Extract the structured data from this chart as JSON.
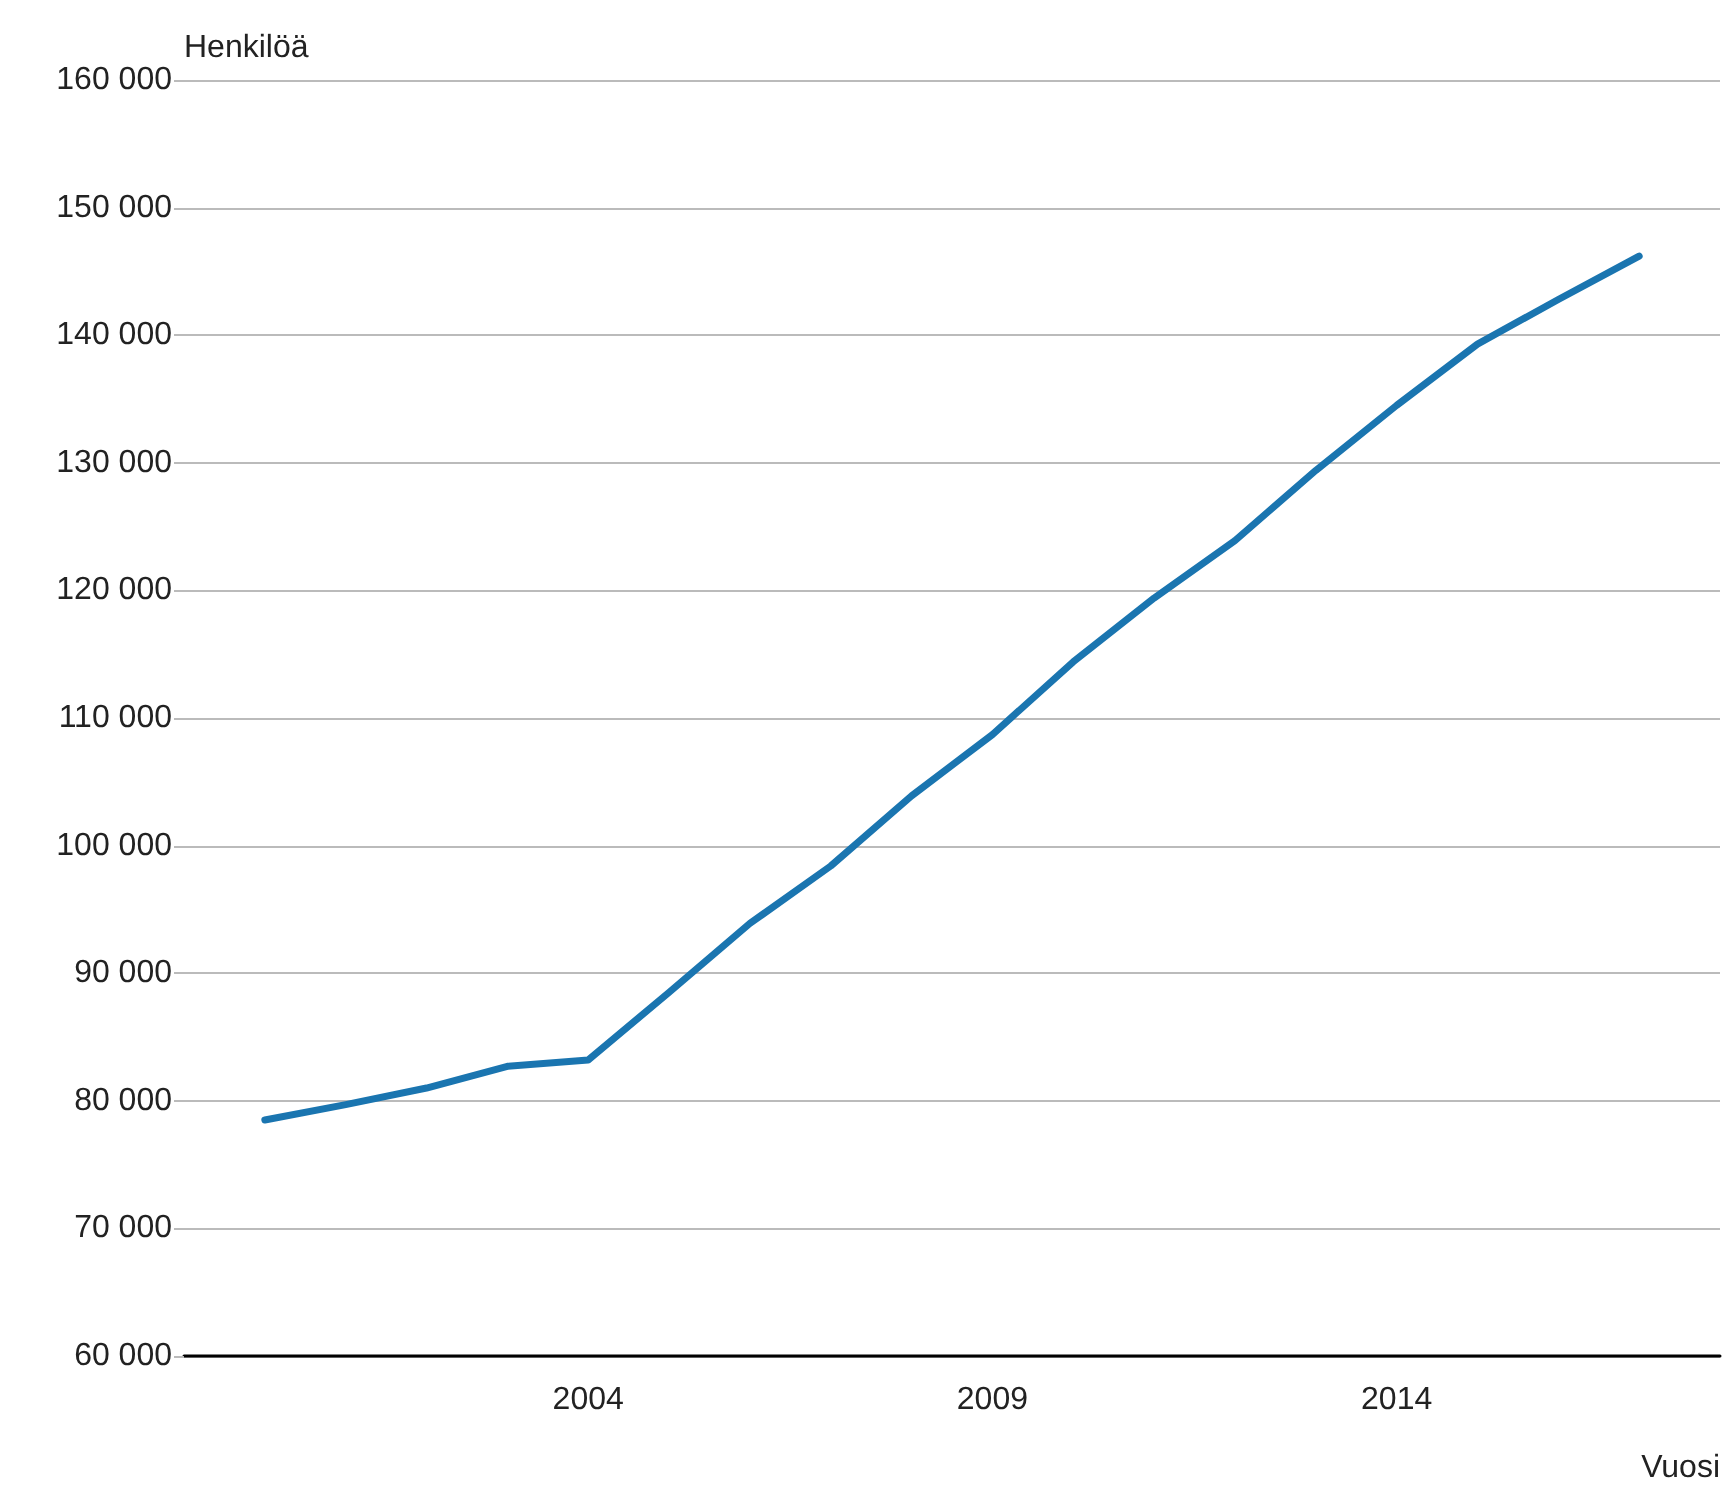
{
  "chart_data": {
    "type": "line",
    "ylabel": "Henkilöä",
    "xlabel": "Vuosi",
    "x": [
      2000,
      2001,
      2002,
      2003,
      2004,
      2005,
      2006,
      2007,
      2008,
      2009,
      2010,
      2011,
      2012,
      2013,
      2014,
      2015,
      2016,
      2017
    ],
    "series": [
      {
        "color": "#1a75b0",
        "values": [
          78500,
          79700,
          81000,
          82700,
          83200,
          88500,
          93900,
          98400,
          103900,
          108700,
          114400,
          119400,
          123900,
          129400,
          134500,
          139300,
          142800,
          146200
        ]
      }
    ],
    "xlim": [
      1999,
      2018
    ],
    "xticks": [
      2004,
      2009,
      2014
    ],
    "ylim": [
      60000,
      160000
    ],
    "yticks": [
      {
        "value": 60000,
        "label": "60 000"
      },
      {
        "value": 70000,
        "label": "70 000"
      },
      {
        "value": 80000,
        "label": "80 000"
      },
      {
        "value": 90000,
        "label": "90 000"
      },
      {
        "value": 100000,
        "label": "100 000"
      },
      {
        "value": 110000,
        "label": "110 000"
      },
      {
        "value": 120000,
        "label": "120 000"
      },
      {
        "value": 130000,
        "label": "130 000"
      },
      {
        "value": 140000,
        "label": "140 000"
      },
      {
        "value": 150000,
        "label": "150 000"
      },
      {
        "value": 160000,
        "label": "160 000"
      }
    ],
    "grid": "y",
    "marker": "none",
    "line_style": "solid"
  }
}
